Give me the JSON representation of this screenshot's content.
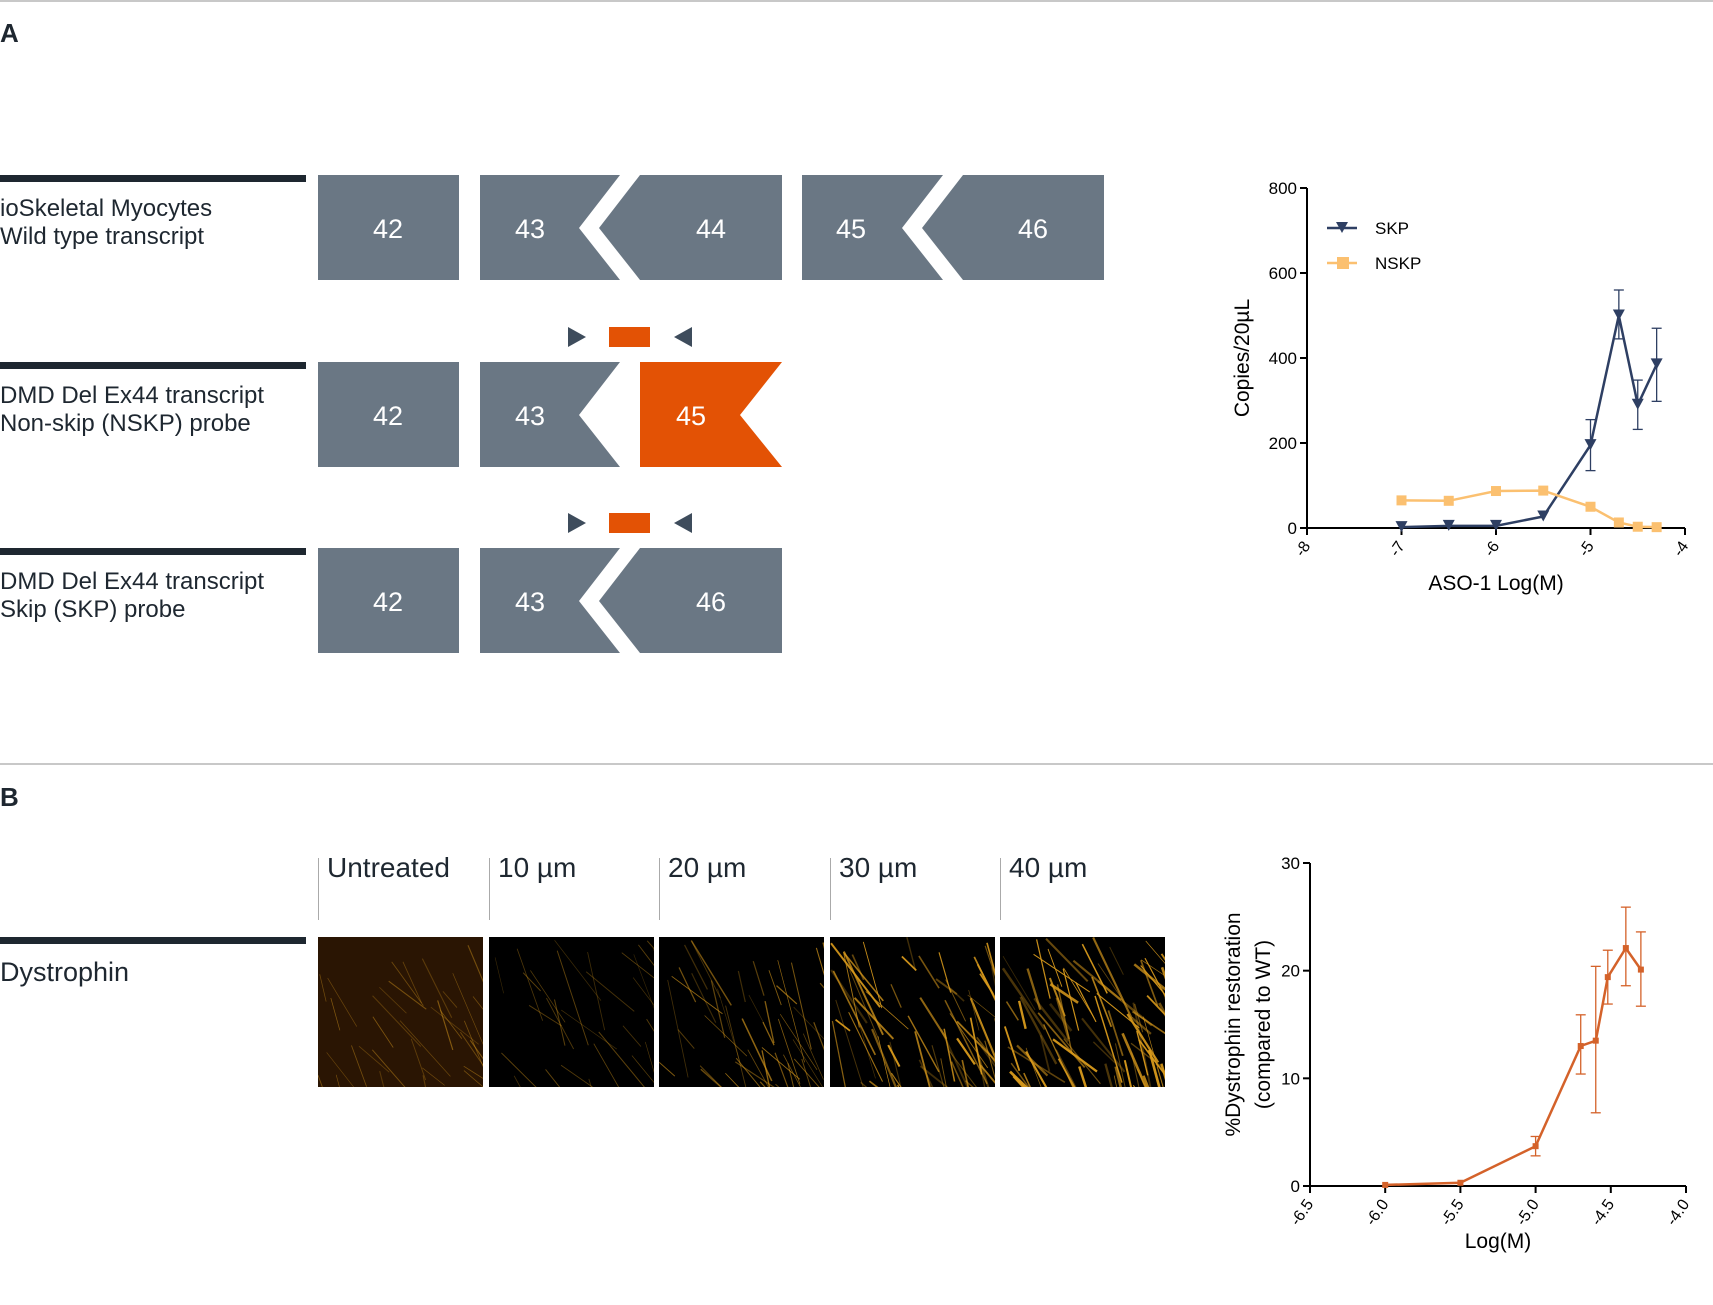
{
  "panel_a": {
    "letter": "A",
    "rows": [
      {
        "line1": "ioSkeletal Myocytes",
        "line2": "Wild type transcript",
        "exons": [
          "42",
          "43",
          "44",
          "45",
          "46"
        ]
      },
      {
        "line1": "DMD Del Ex44 transcript",
        "line2": "Non-skip (NSKP) probe",
        "exons": [
          "42",
          "43",
          "45"
        ]
      },
      {
        "line1": "DMD Del Ex44 transcript",
        "line2": "Skip (SKP) probe",
        "exons": [
          "42",
          "43",
          "46"
        ]
      }
    ],
    "colors": {
      "exon": "#6a7784",
      "highlight": "#e35205",
      "primer": "#3e4c5c",
      "bar": "#1e2730"
    }
  },
  "panel_b": {
    "letter": "B",
    "row_label": "Dystrophin",
    "columns": [
      "Untreated",
      "10 µm",
      "20 µm",
      "30 µm",
      "40 µm"
    ],
    "signal_level": [
      0.25,
      0.2,
      0.45,
      0.75,
      0.95
    ]
  },
  "chart_data": [
    {
      "type": "line",
      "xlabel": "ASO-1 Log(M)",
      "ylabel": "Copies/20µL",
      "xlim": [
        -8,
        -4
      ],
      "ylim": [
        0,
        800
      ],
      "xticks": [
        "-8",
        "-7",
        "-6",
        "-5",
        "-4"
      ],
      "yticks": [
        "0",
        "200",
        "400",
        "600",
        "800"
      ],
      "legend": "top-left",
      "grid": false,
      "series": [
        {
          "name": "SKP",
          "color": "#2e3f63",
          "marker": "triangle-down",
          "x": [
            -7,
            -6.5,
            -6,
            -5.5,
            -5,
            -4.7,
            -4.5,
            -4.3
          ],
          "y": [
            2,
            5,
            5,
            27,
            195,
            500,
            290,
            385
          ],
          "error_low": [
            null,
            null,
            null,
            null,
            135,
            445,
            232,
            298
          ],
          "error_high": [
            null,
            null,
            null,
            null,
            255,
            560,
            348,
            470
          ]
        },
        {
          "name": "NSKP",
          "color": "#fbc070",
          "marker": "square",
          "x": [
            -7,
            -6.5,
            -6,
            -5.5,
            -5,
            -4.7,
            -4.5,
            -4.3
          ],
          "y": [
            65,
            64,
            87,
            88,
            50,
            13,
            3,
            2
          ]
        }
      ]
    },
    {
      "type": "line",
      "xlabel": "Log(M)",
      "ylabel": [
        "%Dystrophin restoration",
        "(compared to WT)"
      ],
      "xlim": [
        -6.5,
        -4.0
      ],
      "ylim": [
        0,
        30
      ],
      "xticks": [
        "-6.5",
        "-6.0",
        "-5.5",
        "-5.0",
        "-4.5",
        "-4.0"
      ],
      "yticks": [
        "0",
        "10",
        "20",
        "30"
      ],
      "grid": false,
      "series": [
        {
          "color": "#d4622a",
          "marker": "square",
          "x": [
            -6.0,
            -5.5,
            -5.0,
            -4.7,
            -4.6,
            -4.52,
            -4.4,
            -4.3
          ],
          "y": [
            0.1,
            0.3,
            3.7,
            13.0,
            13.5,
            19.4,
            22.1,
            20.1
          ],
          "error_low": [
            null,
            null,
            2.8,
            10.4,
            6.8,
            16.9,
            18.6,
            16.7
          ],
          "error_high": [
            null,
            null,
            4.6,
            15.9,
            20.4,
            21.9,
            25.9,
            23.6
          ]
        }
      ]
    }
  ]
}
